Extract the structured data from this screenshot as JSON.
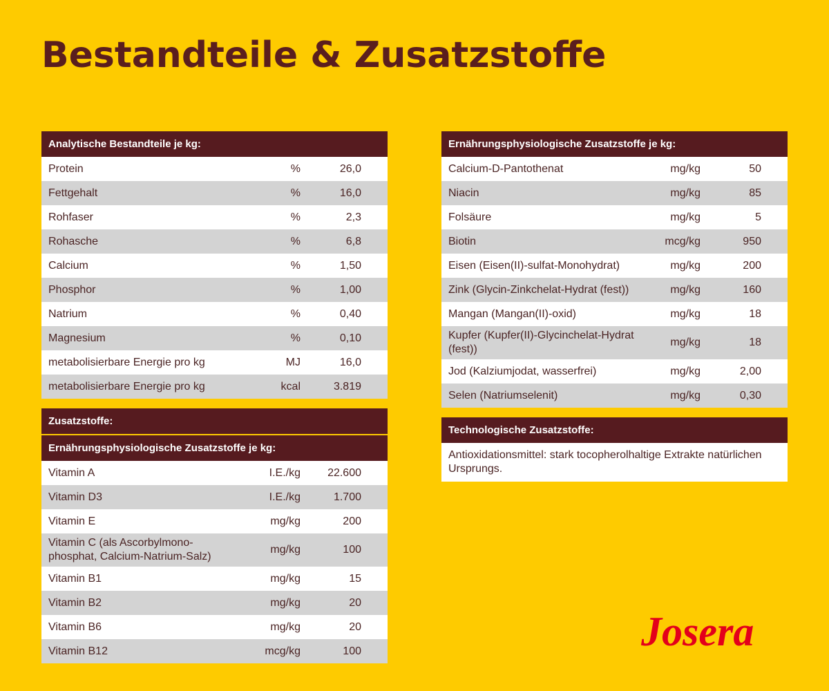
{
  "title": "Bestandteile & Zusatzstoffe",
  "tables": [
    {
      "heading": "Analytische Bestandteile je kg:",
      "rows": [
        {
          "name": "Protein",
          "unit": "%",
          "value": "26,0"
        },
        {
          "name": "Fettgehalt",
          "unit": "%",
          "value": "16,0"
        },
        {
          "name": "Rohfaser",
          "unit": "%",
          "value": "2,3"
        },
        {
          "name": "Rohasche",
          "unit": "%",
          "value": "6,8"
        },
        {
          "name": "Calcium",
          "unit": "%",
          "value": "1,50"
        },
        {
          "name": "Phosphor",
          "unit": "%",
          "value": "1,00"
        },
        {
          "name": "Natrium",
          "unit": "%",
          "value": "0,40"
        },
        {
          "name": "Magnesium",
          "unit": "%",
          "value": "0,10"
        },
        {
          "name": "metabolisierbare Energie pro kg",
          "unit": "MJ",
          "value": "16,0"
        },
        {
          "name": "metabolisierbare Energie pro kg",
          "unit": "kcal",
          "value": "3.819"
        }
      ]
    },
    {
      "heading": "Zusatzstoffe:",
      "subheading": "Ernährungsphysiologische Zusatzstoffe je kg:",
      "rows": [
        {
          "name": "Vitamin A",
          "unit": "I.E./kg",
          "value": "22.600"
        },
        {
          "name": "Vitamin D3",
          "unit": "I.E./kg",
          "value": "1.700"
        },
        {
          "name": "Vitamin E",
          "unit": "mg/kg",
          "value": "200"
        },
        {
          "name": "Vitamin C (als Ascorbylmono-phosphat, Calcium-Natrium-Salz)",
          "unit": "mg/kg",
          "value": "100"
        },
        {
          "name": "Vitamin B1",
          "unit": "mg/kg",
          "value": "15"
        },
        {
          "name": "Vitamin B2",
          "unit": "mg/kg",
          "value": "20"
        },
        {
          "name": "Vitamin B6",
          "unit": "mg/kg",
          "value": "20"
        },
        {
          "name": "Vitamin B12",
          "unit": "mcg/kg",
          "value": "100"
        }
      ]
    },
    {
      "heading": "Ernährungsphysiologische Zusatzstoffe je kg:",
      "rows": [
        {
          "name": "Calcium-D-Pantothenat",
          "unit": "mg/kg",
          "value": "50"
        },
        {
          "name": "Niacin",
          "unit": "mg/kg",
          "value": "85"
        },
        {
          "name": "Folsäure",
          "unit": "mg/kg",
          "value": "5"
        },
        {
          "name": "Biotin",
          "unit": "mcg/kg",
          "value": "950"
        },
        {
          "name": "Eisen (Eisen(II)-sulfat-Monohydrat)",
          "unit": "mg/kg",
          "value": "200"
        },
        {
          "name": "Zink (Glycin-Zinkchelat-Hydrat (fest))",
          "unit": "mg/kg",
          "value": "160"
        },
        {
          "name": "Mangan (Mangan(II)-oxid)",
          "unit": "mg/kg",
          "value": "18"
        },
        {
          "name": "Kupfer (Kupfer(II)-Glycinchelat-Hydrat (fest))",
          "unit": "mg/kg",
          "value": "18"
        },
        {
          "name": "Jod (Kalziumjodat, wasserfrei)",
          "unit": "mg/kg",
          "value": "2,00"
        },
        {
          "name": "Selen (Natriumselenit)",
          "unit": "mg/kg",
          "value": "0,30"
        }
      ]
    },
    {
      "heading": "Technologische Zusatzstoffe:",
      "text": "Antioxidationsmittel: stark tocopherolhaltige Extrakte natürlichen Ursprungs."
    }
  ],
  "logo": "Josera"
}
